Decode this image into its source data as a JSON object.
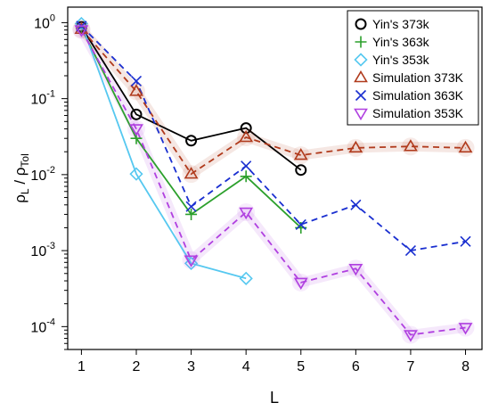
{
  "chart_data": {
    "type": "line",
    "title": "",
    "xlabel": "L",
    "ylabel_main": "ρ",
    "ylabel_sub1": "L",
    "ylabel_sep": " / ",
    "ylabel_rho2": "ρ",
    "ylabel_sub2": "Tol",
    "xlim": [
      0.75,
      8.3
    ],
    "ylim": [
      5e-05,
      1.6
    ],
    "y_scale": "log",
    "x_ticks": [
      1,
      2,
      3,
      4,
      5,
      6,
      7,
      8
    ],
    "x_tick_labels": [
      "1",
      "2",
      "3",
      "4",
      "5",
      "6",
      "7",
      "8"
    ],
    "y_ticks": [
      {
        "value": 1,
        "base": "10",
        "exp": "0"
      },
      {
        "value": 0.1,
        "base": "10",
        "exp": "-1"
      },
      {
        "value": 0.01,
        "base": "10",
        "exp": "-2"
      },
      {
        "value": 0.001,
        "base": "10",
        "exp": "-3"
      },
      {
        "value": 0.0001,
        "base": "10",
        "exp": "-4"
      }
    ],
    "grid": false,
    "legend_position": "top-right",
    "series": [
      {
        "name": "Yin's 373k",
        "color": "#000000",
        "marker": "circle",
        "dash": false,
        "halo": false,
        "x": [
          1,
          2,
          3,
          4,
          5
        ],
        "y": [
          0.88,
          0.062,
          0.028,
          0.041,
          0.0115
        ]
      },
      {
        "name": "Yin's 363k",
        "color": "#2ca02c",
        "marker": "plus",
        "dash": false,
        "halo": false,
        "x": [
          1,
          2,
          3,
          4,
          5
        ],
        "y": [
          0.85,
          0.03,
          0.003,
          0.0095,
          0.002
        ]
      },
      {
        "name": "Yin's 353k",
        "color": "#56c8f0",
        "marker": "diamond",
        "dash": false,
        "halo": false,
        "x": [
          1,
          2,
          3,
          4
        ],
        "y": [
          0.97,
          0.0102,
          0.00068,
          0.00043
        ]
      },
      {
        "name": "Simulation 373K",
        "color": "#b03a1c",
        "marker": "triangle-up",
        "dash": true,
        "halo": true,
        "x": [
          1,
          2,
          3,
          4,
          5,
          6,
          7,
          8
        ],
        "y": [
          0.82,
          0.125,
          0.0102,
          0.031,
          0.018,
          0.0225,
          0.0235,
          0.0225
        ]
      },
      {
        "name": "Simulation 363K",
        "color": "#1a2fd0",
        "marker": "x",
        "dash": true,
        "halo": false,
        "x": [
          1,
          2,
          3,
          4,
          5,
          6,
          7,
          8
        ],
        "y": [
          0.9,
          0.17,
          0.0038,
          0.013,
          0.0022,
          0.004,
          0.001,
          0.00132
        ]
      },
      {
        "name": "Simulation 353K",
        "color": "#b040e0",
        "marker": "triangle-down",
        "dash": true,
        "halo": true,
        "x": [
          1,
          2,
          3,
          4,
          5,
          6,
          7,
          8
        ],
        "y": [
          0.8,
          0.04,
          0.00075,
          0.0032,
          0.00038,
          0.00058,
          7.8e-05,
          9.7e-05
        ]
      }
    ]
  }
}
